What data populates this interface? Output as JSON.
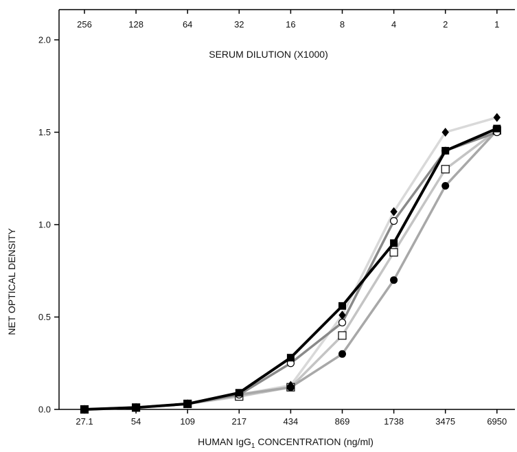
{
  "chart_data": {
    "type": "line",
    "title": "",
    "x_bottom": {
      "label_parts": [
        "HUMAN IgG",
        "1",
        " CONCENTRATION (ng/ml)"
      ],
      "categories": [
        "27.1",
        "54",
        "109",
        "217",
        "434",
        "869",
        "1738",
        "3475",
        "6950"
      ],
      "scale": "log"
    },
    "x_top": {
      "label": "SERUM DILUTION (X1000)",
      "categories": [
        "256",
        "128",
        "64",
        "32",
        "16",
        "8",
        "4",
        "2",
        "1"
      ]
    },
    "y": {
      "label": "NET OPTICAL DENSITY",
      "ticks": [
        "0.0",
        "0.5",
        "1.0",
        "1.5",
        "2.0"
      ],
      "ylim": [
        0,
        2.0
      ]
    },
    "grid": false,
    "series": [
      {
        "marker": "diamond-filled",
        "line_color": "#d9d9d9",
        "values": [
          0,
          0.01,
          0.03,
          0.08,
          0.13,
          0.51,
          1.07,
          1.5,
          1.58
        ]
      },
      {
        "marker": "circle-open",
        "line_color": "#8a8a8a",
        "values": [
          0,
          0.01,
          0.03,
          0.08,
          0.25,
          0.47,
          1.02,
          1.4,
          1.5
        ]
      },
      {
        "marker": "square-open",
        "line_color": "#c4c4c4",
        "values": [
          0,
          0.01,
          0.03,
          0.07,
          0.12,
          0.4,
          0.85,
          1.3,
          1.51
        ]
      },
      {
        "marker": "circle-filled",
        "line_color": "#a8a8a8",
        "values": [
          0,
          0.01,
          0.03,
          0.08,
          0.12,
          0.3,
          0.7,
          1.21,
          1.51
        ]
      },
      {
        "marker": "square-filled",
        "line_color": "#000000",
        "values": [
          0,
          0.01,
          0.03,
          0.09,
          0.28,
          0.56,
          0.9,
          1.4,
          1.52
        ]
      }
    ]
  }
}
